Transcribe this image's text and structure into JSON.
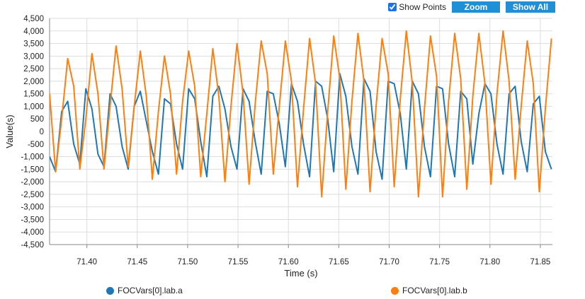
{
  "toolbar": {
    "show_points_label": "Show Points",
    "show_points_checked": true,
    "zoom_label": "Zoom",
    "show_all_label": "Show All"
  },
  "colors": {
    "series_a": "#1f77b4",
    "series_b": "#ff7f0e",
    "button": "#1f8fd6",
    "grid": "#dddddd"
  },
  "chart_data": {
    "type": "line",
    "xlabel": "Time (s)",
    "ylabel": "Value(s)",
    "xlim": [
      71.363,
      71.862
    ],
    "ylim": [
      -4500,
      4500
    ],
    "x_ticks": [
      "71.40",
      "71.45",
      "71.50",
      "71.55",
      "71.60",
      "71.65",
      "71.70",
      "71.75",
      "71.80",
      "71.85"
    ],
    "y_ticks": [
      "4,500",
      "4,000",
      "3,500",
      "3,000",
      "2,500",
      "2,000",
      "1,500",
      "1,000",
      "500",
      "0",
      "-500",
      "-1,000",
      "-1,500",
      "-2,000",
      "-2,500",
      "-3,000",
      "-3,500",
      "-4,000",
      "-4,500"
    ],
    "grid": true,
    "legend_position": "bottom",
    "series": [
      {
        "name": "FOCVars[0].lab.a",
        "color": "#1f77b4",
        "x": [
          71.363,
          71.369,
          71.375,
          71.381,
          71.387,
          71.393,
          71.399,
          71.405,
          71.411,
          71.417,
          71.423,
          71.429,
          71.435,
          71.441,
          71.447,
          71.453,
          71.459,
          71.465,
          71.471,
          71.477,
          71.483,
          71.489,
          71.495,
          71.501,
          71.507,
          71.513,
          71.519,
          71.525,
          71.531,
          71.537,
          71.543,
          71.549,
          71.555,
          71.561,
          71.567,
          71.573,
          71.579,
          71.585,
          71.591,
          71.597,
          71.603,
          71.609,
          71.615,
          71.621,
          71.627,
          71.633,
          71.639,
          71.645,
          71.651,
          71.657,
          71.663,
          71.669,
          71.675,
          71.681,
          71.687,
          71.693,
          71.699,
          71.705,
          71.711,
          71.717,
          71.723,
          71.729,
          71.735,
          71.741,
          71.747,
          71.753,
          71.759,
          71.765,
          71.771,
          71.777,
          71.783,
          71.789,
          71.795,
          71.801,
          71.807,
          71.813,
          71.819,
          71.825,
          71.831,
          71.837,
          71.843,
          71.849,
          71.855,
          71.861
        ],
        "y": [
          -1000,
          -1600,
          800,
          1200,
          -500,
          -1300,
          1700,
          900,
          -900,
          -1400,
          1500,
          1000,
          -600,
          -1500,
          1000,
          1600,
          400,
          -800,
          -1700,
          1300,
          1100,
          -500,
          -1500,
          1700,
          1300,
          -400,
          -1800,
          1400,
          1800,
          900,
          -600,
          -1500,
          1700,
          1200,
          -400,
          -1700,
          1600,
          1500,
          300,
          -1400,
          1900,
          1200,
          -500,
          -1800,
          2000,
          1800,
          500,
          -1600,
          2300,
          1400,
          -600,
          -1700,
          2100,
          1600,
          -800,
          -1900,
          2000,
          1900,
          700,
          -1500,
          2000,
          1500,
          -600,
          -1800,
          1800,
          1700,
          -500,
          -1800,
          1600,
          1300,
          -1300,
          700,
          1900,
          1500,
          -500,
          -1700,
          1500,
          1800,
          -400,
          -1600,
          1100,
          1400,
          -800,
          -1500
        ]
      },
      {
        "name": "FOCVars[0].lab.b",
        "color": "#ff7f0e",
        "x": [
          71.363,
          71.369,
          71.375,
          71.381,
          71.387,
          71.393,
          71.399,
          71.405,
          71.411,
          71.417,
          71.423,
          71.429,
          71.435,
          71.441,
          71.447,
          71.453,
          71.459,
          71.465,
          71.471,
          71.477,
          71.483,
          71.489,
          71.495,
          71.501,
          71.507,
          71.513,
          71.519,
          71.525,
          71.531,
          71.537,
          71.543,
          71.549,
          71.555,
          71.561,
          71.567,
          71.573,
          71.579,
          71.585,
          71.591,
          71.597,
          71.603,
          71.609,
          71.615,
          71.621,
          71.627,
          71.633,
          71.639,
          71.645,
          71.651,
          71.657,
          71.663,
          71.669,
          71.675,
          71.681,
          71.687,
          71.693,
          71.699,
          71.705,
          71.711,
          71.717,
          71.723,
          71.729,
          71.735,
          71.741,
          71.747,
          71.753,
          71.759,
          71.765,
          71.771,
          71.777,
          71.783,
          71.789,
          71.795,
          71.801,
          71.807,
          71.813,
          71.819,
          71.825,
          71.831,
          71.837,
          71.843,
          71.849,
          71.855,
          71.861
        ],
        "y": [
          1500,
          -1600,
          500,
          2900,
          1800,
          -1500,
          500,
          3100,
          1500,
          -1500,
          1000,
          3400,
          1700,
          -1400,
          1000,
          3200,
          1400,
          -1900,
          800,
          3000,
          1500,
          -1700,
          1200,
          3200,
          1800,
          -1800,
          700,
          3300,
          1400,
          -2000,
          1000,
          3500,
          1500,
          -2100,
          1100,
          3600,
          2300,
          -1700,
          1000,
          3600,
          2000,
          -2200,
          900,
          3700,
          1900,
          -2600,
          800,
          3800,
          2100,
          -2300,
          1200,
          3900,
          2000,
          -2400,
          1000,
          3700,
          2300,
          -2200,
          1300,
          4000,
          1900,
          -2600,
          900,
          3800,
          2200,
          -2600,
          1200,
          3900,
          2100,
          -2300,
          1400,
          3900,
          1900,
          -2100,
          1500,
          4000,
          2000,
          -1900,
          1000,
          3600,
          1900,
          -2400,
          900,
          3700
        ]
      }
    ]
  }
}
